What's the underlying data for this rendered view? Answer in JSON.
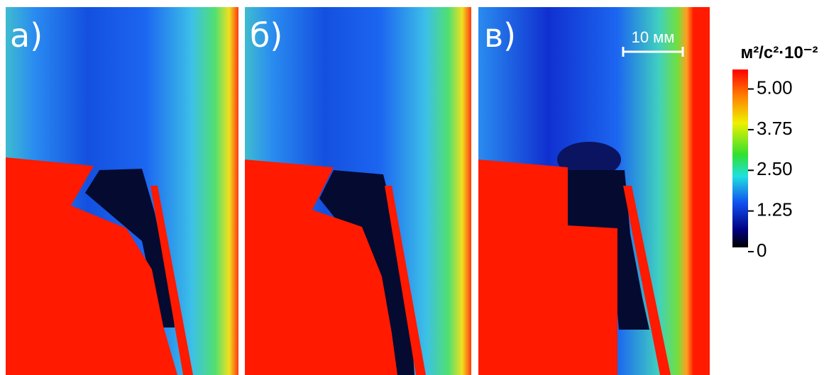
{
  "panels": [
    {
      "label": "а)"
    },
    {
      "label": "б)"
    },
    {
      "label": "в)"
    }
  ],
  "scale_bar": "10 мм",
  "colorbar": {
    "title": "м²/с²·10⁻²",
    "lim": [
      0,
      5.6
    ],
    "ticks": [
      0,
      {
        "value": 1.25,
        "label": "1.25"
      },
      {
        "value": 2.5,
        "label": "2.50"
      },
      {
        "value": 3.75,
        "label": "3.75"
      },
      {
        "value": 5,
        "label": "5.00"
      }
    ]
  }
}
